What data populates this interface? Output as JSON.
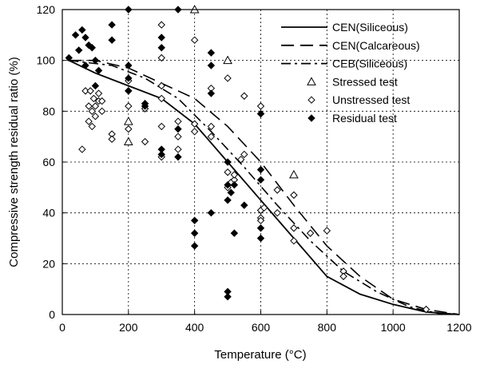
{
  "chart_data": {
    "type": "scatter",
    "title": "",
    "xlabel": "Temperature (°C)",
    "ylabel": "Compressive strength residual ratio (%)",
    "xlim": [
      0,
      1200
    ],
    "ylim": [
      0,
      120
    ],
    "x_ticks": [
      "0",
      "200",
      "400",
      "600",
      "800",
      "1000",
      "1200"
    ],
    "y_ticks": [
      "0",
      "20",
      "40",
      "60",
      "80",
      "100",
      "120"
    ],
    "grid": true,
    "legend_position": "top-right",
    "series": [
      {
        "name": "CEN(Siliceous)",
        "kind": "line",
        "style": "solid",
        "x": [
          20,
          100,
          200,
          300,
          400,
          500,
          600,
          700,
          800,
          900,
          1000,
          1100,
          1200
        ],
        "y": [
          100,
          95,
          90,
          85,
          75,
          60,
          45,
          30,
          15,
          8,
          4,
          1,
          0
        ]
      },
      {
        "name": "CEN(Calcareous)",
        "kind": "line",
        "style": "long-dash",
        "x": [
          20,
          100,
          200,
          300,
          400,
          500,
          600,
          700,
          800,
          900,
          1000,
          1100,
          1200
        ],
        "y": [
          100,
          100,
          97,
          91,
          85,
          74,
          60,
          43,
          27,
          15,
          6,
          2,
          0
        ]
      },
      {
        "name": "CEB(Siliceous)",
        "kind": "line",
        "style": "dash-dot",
        "x": [
          20,
          150,
          250,
          350,
          450,
          550,
          650,
          750,
          850,
          950,
          1050,
          1150
        ],
        "y": [
          100,
          98,
          93,
          85,
          72,
          58,
          43,
          29,
          17,
          9,
          3,
          0
        ]
      },
      {
        "name": "Stressed test",
        "kind": "points",
        "marker": "triangle-open",
        "x": [
          200,
          200,
          400,
          500,
          700
        ],
        "y": [
          76,
          68,
          120,
          100,
          55
        ]
      },
      {
        "name": "Unstressed test",
        "kind": "points",
        "marker": "diamond-open",
        "x": [
          60,
          70,
          80,
          80,
          85,
          90,
          90,
          95,
          100,
          100,
          110,
          110,
          120,
          120,
          150,
          150,
          200,
          200,
          200,
          200,
          250,
          250,
          250,
          300,
          300,
          300,
          300,
          300,
          300,
          350,
          350,
          350,
          400,
          400,
          400,
          450,
          450,
          450,
          500,
          500,
          500,
          510,
          520,
          520,
          540,
          550,
          550,
          600,
          600,
          600,
          600,
          600,
          610,
          650,
          650,
          700,
          700,
          700,
          750,
          800,
          850,
          850,
          1100
        ],
        "y": [
          65,
          88,
          76,
          82,
          88,
          80,
          74,
          85,
          78,
          82,
          87,
          84,
          84,
          80,
          71,
          69,
          92,
          88,
          82,
          73,
          83,
          81,
          68,
          114,
          101,
          90,
          85,
          74,
          62,
          76,
          70,
          65,
          108,
          75,
          72,
          89,
          74,
          70,
          93,
          56,
          50,
          52,
          53,
          55,
          61,
          86,
          63,
          82,
          79,
          41,
          38,
          37,
          42,
          49,
          40,
          47,
          34,
          29,
          32,
          33,
          17,
          15,
          2
        ]
      },
      {
        "name": "Residual test",
        "kind": "points",
        "marker": "diamond-filled",
        "x": [
          20,
          40,
          50,
          60,
          70,
          70,
          80,
          90,
          100,
          100,
          110,
          150,
          150,
          200,
          200,
          200,
          200,
          250,
          250,
          300,
          300,
          300,
          300,
          350,
          350,
          350,
          400,
          400,
          400,
          450,
          450,
          450,
          450,
          500,
          500,
          500,
          500,
          500,
          510,
          520,
          520,
          550,
          600,
          600,
          600,
          600,
          600
        ],
        "y": [
          101,
          110,
          104,
          112,
          109,
          98,
          106,
          105,
          100,
          90,
          96,
          114,
          108,
          120,
          98,
          93,
          88,
          83,
          82,
          105,
          109,
          65,
          63,
          120,
          73,
          62,
          37,
          32,
          27,
          103,
          98,
          87,
          40,
          60,
          51,
          45,
          9,
          7,
          48,
          51,
          32,
          43,
          79,
          57,
          53,
          34,
          30
        ]
      }
    ]
  }
}
